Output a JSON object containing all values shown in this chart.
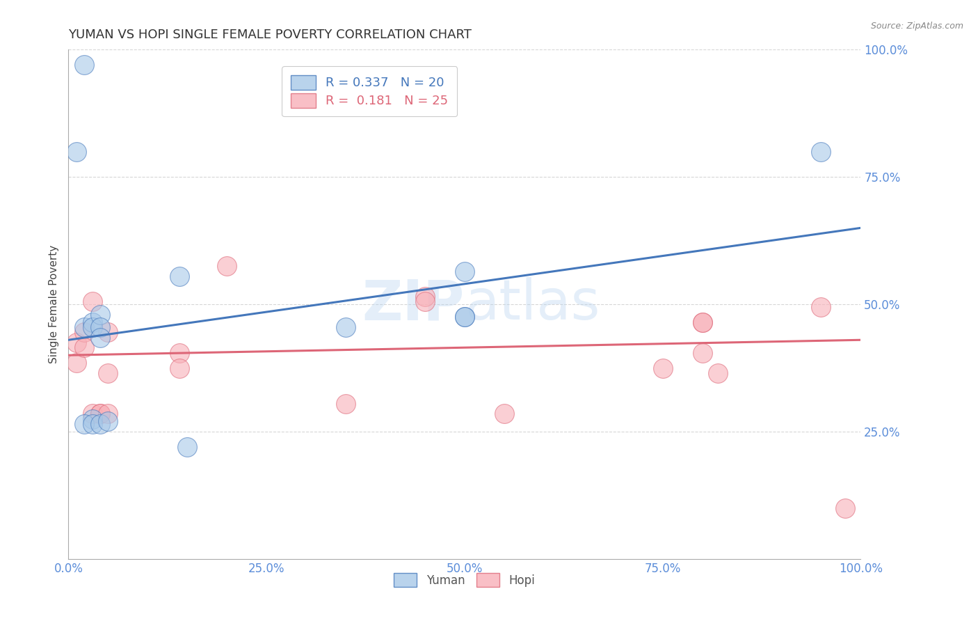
{
  "title": "YUMAN VS HOPI SINGLE FEMALE POVERTY CORRELATION CHART",
  "source": "Source: ZipAtlas.com",
  "xlabel": "",
  "ylabel": "Single Female Poverty",
  "xlim": [
    0.0,
    1.0
  ],
  "ylim": [
    0.0,
    1.0
  ],
  "xtick_labels": [
    "0.0%",
    "25.0%",
    "50.0%",
    "75.0%",
    "100.0%"
  ],
  "xtick_positions": [
    0.0,
    0.25,
    0.5,
    0.75,
    1.0
  ],
  "ytick_labels": [
    "25.0%",
    "50.0%",
    "75.0%",
    "100.0%"
  ],
  "ytick_positions": [
    0.25,
    0.5,
    0.75,
    1.0
  ],
  "yuman_r": 0.337,
  "yuman_n": 20,
  "hopi_r": 0.181,
  "hopi_n": 25,
  "yuman_color": "#a8c8e8",
  "hopi_color": "#f8b0b8",
  "yuman_line_color": "#4477bb",
  "hopi_line_color": "#dd6677",
  "watermark": "ZIPAtlas",
  "yuman_points": [
    [
      0.02,
      0.97
    ],
    [
      0.01,
      0.8
    ],
    [
      0.02,
      0.455
    ],
    [
      0.03,
      0.465
    ],
    [
      0.03,
      0.455
    ],
    [
      0.04,
      0.48
    ],
    [
      0.03,
      0.275
    ],
    [
      0.02,
      0.265
    ],
    [
      0.03,
      0.265
    ],
    [
      0.04,
      0.265
    ],
    [
      0.05,
      0.27
    ],
    [
      0.04,
      0.455
    ],
    [
      0.04,
      0.435
    ],
    [
      0.15,
      0.22
    ],
    [
      0.14,
      0.555
    ],
    [
      0.35,
      0.455
    ],
    [
      0.5,
      0.565
    ],
    [
      0.5,
      0.475
    ],
    [
      0.5,
      0.475
    ],
    [
      0.95,
      0.8
    ]
  ],
  "hopi_points": [
    [
      0.01,
      0.425
    ],
    [
      0.01,
      0.385
    ],
    [
      0.02,
      0.445
    ],
    [
      0.02,
      0.415
    ],
    [
      0.03,
      0.505
    ],
    [
      0.03,
      0.285
    ],
    [
      0.04,
      0.285
    ],
    [
      0.04,
      0.285
    ],
    [
      0.05,
      0.285
    ],
    [
      0.05,
      0.445
    ],
    [
      0.05,
      0.365
    ],
    [
      0.14,
      0.405
    ],
    [
      0.14,
      0.375
    ],
    [
      0.2,
      0.575
    ],
    [
      0.35,
      0.305
    ],
    [
      0.45,
      0.515
    ],
    [
      0.45,
      0.505
    ],
    [
      0.55,
      0.285
    ],
    [
      0.75,
      0.375
    ],
    [
      0.8,
      0.465
    ],
    [
      0.8,
      0.465
    ],
    [
      0.8,
      0.405
    ],
    [
      0.82,
      0.365
    ],
    [
      0.95,
      0.495
    ],
    [
      0.98,
      0.1
    ]
  ],
  "title_color": "#333333",
  "title_fontsize": 13,
  "axis_label_color": "#444444",
  "tick_color": "#5b8dd9",
  "grid_color": "#cccccc",
  "background_color": "#ffffff",
  "yuman_trendline": [
    0.0,
    0.43,
    1.0,
    0.65
  ],
  "hopi_trendline": [
    0.0,
    0.4,
    1.0,
    0.43
  ]
}
